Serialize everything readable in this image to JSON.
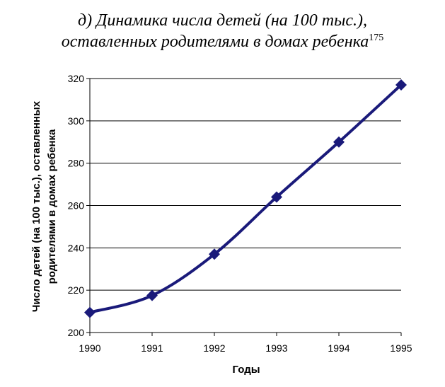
{
  "chart_data": {
    "type": "line",
    "title_line1": "д) Динамика числа детей (на 100 тыс.),",
    "title_line2": "оставленных родителями в домах ребенка",
    "title_footnote": "175",
    "xlabel": "Годы",
    "ylabel_line1": "Число детей (на 100 тыс.), оставленных",
    "ylabel_line2": "родителями в домах ребенка",
    "x": [
      "1990",
      "1991",
      "1992",
      "1993",
      "1994",
      "1995"
    ],
    "series": [
      {
        "values": [
          209.5,
          217.5,
          237,
          264,
          290,
          317
        ]
      }
    ],
    "ylim": [
      200,
      320
    ],
    "yticks": [
      "200",
      "220",
      "240",
      "260",
      "280",
      "300",
      "320"
    ],
    "grid": true,
    "legend": "none",
    "color": "#1a1a7a"
  }
}
